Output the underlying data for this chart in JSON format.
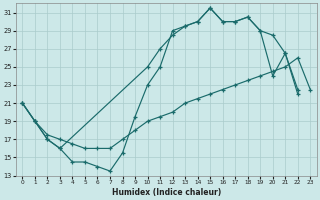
{
  "xlabel": "Humidex (Indice chaleur)",
  "bg_color": "#cce8e8",
  "grid_color": "#aacccc",
  "line_color": "#1a6b6b",
  "xlim": [
    -0.5,
    23.5
  ],
  "ylim": [
    13,
    32
  ],
  "xticks": [
    0,
    1,
    2,
    3,
    4,
    5,
    6,
    7,
    8,
    9,
    10,
    11,
    12,
    13,
    14,
    15,
    16,
    17,
    18,
    19,
    20,
    21,
    22,
    23
  ],
  "yticks": [
    13,
    15,
    17,
    19,
    21,
    23,
    25,
    27,
    29,
    31
  ],
  "line1_x": [
    0,
    1,
    2,
    3,
    4,
    5,
    6,
    7,
    8,
    9,
    10,
    11,
    12,
    13,
    14,
    15,
    16,
    17,
    18,
    19,
    20,
    21,
    22
  ],
  "line1_y": [
    21,
    19,
    17,
    16,
    14.5,
    14.5,
    14,
    13.5,
    15.5,
    19.5,
    23,
    25,
    29,
    29.5,
    30,
    31.5,
    30,
    30,
    30.5,
    29,
    24,
    26.5,
    22.5
  ],
  "line2_x": [
    0,
    1,
    2,
    3,
    10,
    11,
    12,
    13,
    14,
    15,
    16,
    17,
    18,
    19,
    20,
    21,
    22
  ],
  "line2_y": [
    21,
    19,
    17,
    16,
    25,
    27,
    28.5,
    29.5,
    30,
    31.5,
    30,
    30,
    30.5,
    29,
    28.5,
    26.5,
    22
  ],
  "line3_x": [
    0,
    1,
    2,
    3,
    4,
    5,
    6,
    7,
    8,
    9,
    10,
    11,
    12,
    13,
    14,
    15,
    16,
    17,
    18,
    19,
    20,
    21,
    22,
    23
  ],
  "line3_y": [
    21,
    19,
    17.5,
    17,
    16.5,
    16,
    16,
    16,
    17,
    18,
    19,
    19.5,
    20,
    21,
    21.5,
    22,
    22.5,
    23,
    23.5,
    24,
    24.5,
    25,
    26,
    22.5
  ]
}
